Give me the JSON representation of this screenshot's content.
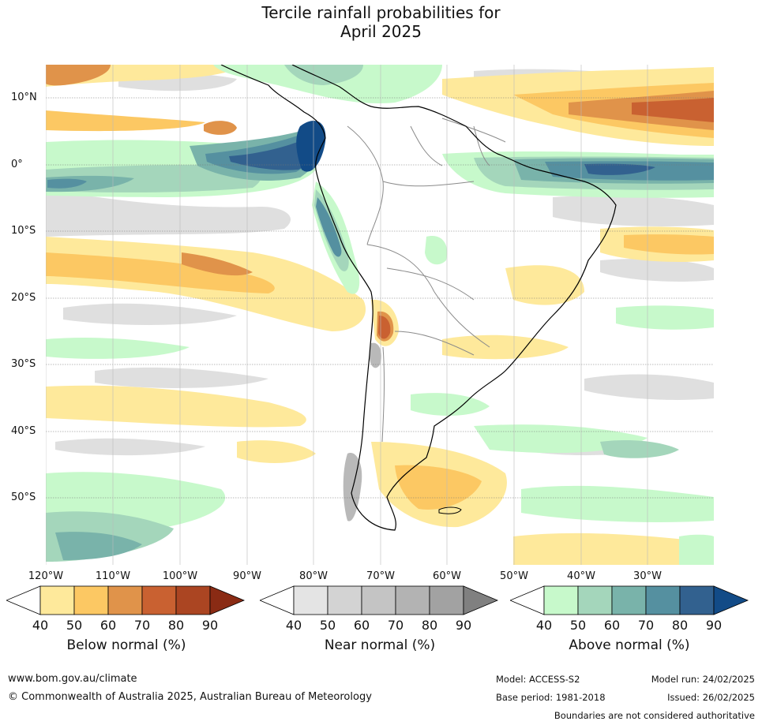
{
  "title": {
    "line1": "Tercile rainfall probabilities for",
    "line2": "April 2025"
  },
  "map": {
    "lat_labels": [
      "10°N",
      "0°",
      "10°S",
      "20°S",
      "30°S",
      "40°S",
      "50°S"
    ],
    "lon_labels": [
      "120°W",
      "110°W",
      "100°W",
      "90°W",
      "80°W",
      "70°W",
      "60°W",
      "50°W",
      "40°W",
      "30°W"
    ]
  },
  "legends": [
    {
      "title": "Below normal (%)",
      "ticks": [
        "40",
        "50",
        "60",
        "70",
        "80",
        "90"
      ],
      "colors": [
        "#ffffff",
        "#fee99b",
        "#fcc863",
        "#e0934a",
        "#c96131",
        "#ab4522",
        "#8a2b14"
      ]
    },
    {
      "title": "Near normal (%)",
      "ticks": [
        "40",
        "50",
        "60",
        "70",
        "80",
        "90"
      ],
      "colors": [
        "#ffffff",
        "#e4e4e4",
        "#d3d3d3",
        "#c4c4c4",
        "#b3b3b3",
        "#a2a2a2",
        "#808080"
      ]
    },
    {
      "title": "Above normal (%)",
      "ticks": [
        "40",
        "50",
        "60",
        "70",
        "80",
        "90"
      ],
      "colors": [
        "#ffffff",
        "#c7f9cb",
        "#a4d6bb",
        "#79b3aa",
        "#5590a0",
        "#32618f",
        "#124b87"
      ]
    }
  ],
  "footer": {
    "website": "www.bom.gov.au/climate",
    "copyright": "© Commonwealth of Australia 2025, Australian Bureau of Meteorology",
    "model": "Model: ACCESS-S2",
    "base_period": "Base period: 1981-2018",
    "model_run": "Model run: 24/02/2025",
    "issued": "Issued: 26/02/2025",
    "disclaimer": "Boundaries are not considered authoritative"
  }
}
